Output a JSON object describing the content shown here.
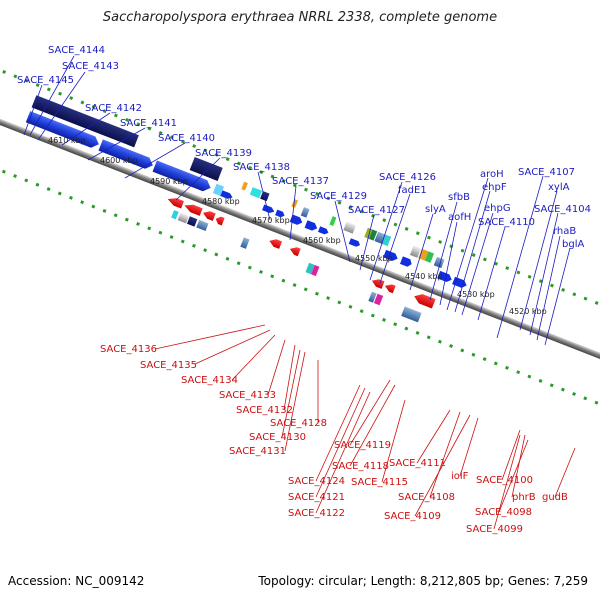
{
  "title": "Saccharopolyspora erythraea NRRL 2338, complete genome",
  "accession": "Accession: NC_009142",
  "summary": "Topology: circular; Length: 8,212,805 bp; Genes: 7,259",
  "colors": {
    "forward_labels": "#1c1cc0",
    "reverse_labels": "#cc1010",
    "backbone": "#888888",
    "ticks": "#2a9a2a"
  },
  "kbp_ticks": [
    "4610 kbp",
    "4600 kbp",
    "4590 kbp",
    "4580 kbp",
    "4570 kbp",
    "4560 kbp",
    "4550 kbp",
    "4540 kbp",
    "4530 kbp",
    "4520 kbp"
  ],
  "forward_genes": [
    "SACE_4144",
    "SACE_4143",
    "SACE_4145",
    "SACE_4142",
    "SACE_4141",
    "SACE_4140",
    "SACE_4139",
    "SACE_4138",
    "SACE_4137",
    "SACE_4129",
    "SACE_4127",
    "SACE_4126",
    "fadE1",
    "slyA",
    "sfbB",
    "aofH",
    "aroH",
    "ehpF",
    "ehpG",
    "SACE_4110",
    "SACE_4107",
    "xylA",
    "SACE_4104",
    "rhaB",
    "bglA"
  ],
  "reverse_genes": [
    "SACE_4136",
    "SACE_4135",
    "SACE_4134",
    "SACE_4133",
    "SACE_4132",
    "SACE_4128",
    "SACE_4130",
    "SACE_4131",
    "SACE_4119",
    "SACE_4118",
    "SACE_4124",
    "SACE_4115",
    "SACE_4121",
    "SACE_4122",
    "SACE_4111",
    "SACE_4108",
    "SACE_4109",
    "iolF",
    "SACE_4100",
    "phrB",
    "SACE_4098",
    "SACE_4099",
    "gudB"
  ]
}
